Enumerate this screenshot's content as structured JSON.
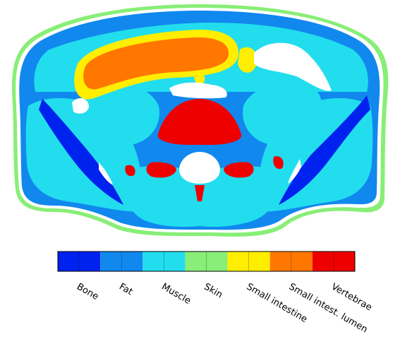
{
  "figure": {
    "colorbar": {
      "categories": [
        {
          "label": "Bone",
          "color": "#0022ee"
        },
        {
          "label": "Fat",
          "color": "#1188ee"
        },
        {
          "label": "Muscle",
          "color": "#22ddee"
        },
        {
          "label": "Skin",
          "color": "#88ee77"
        },
        {
          "label": "Small intestine",
          "color": "#ffee00"
        },
        {
          "label": "Small intest. lumen",
          "color": "#ff7700"
        },
        {
          "label": "Vertebrae",
          "color": "#ee0000"
        }
      ]
    },
    "background_colors": {
      "outside": "#ffffff",
      "air": "#ffffff",
      "bone_dark": "#001199"
    }
  }
}
